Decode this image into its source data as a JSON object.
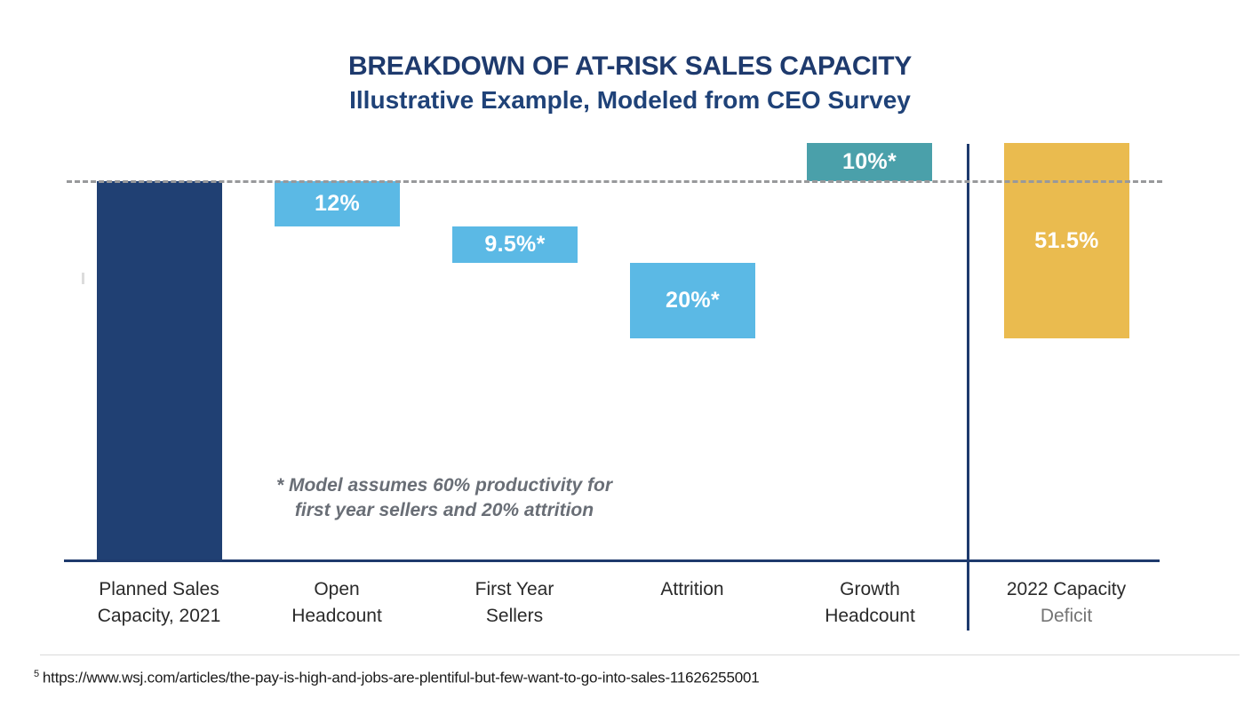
{
  "header": {
    "title": "BREAKDOWN OF AT-RISK SALES CAPACITY",
    "subtitle": "Illustrative Example, Modeled from CEO Survey"
  },
  "colors": {
    "navy": "#204073",
    "lightBlue": "#5bb9e5",
    "teal": "#4aa0aa",
    "gold": "#eabb4f",
    "axisLine": "#1e3a6d",
    "dashLine": "#98999b",
    "mutedText": "#757575"
  },
  "chart_data": {
    "type": "bar",
    "subtype": "waterfall",
    "title": "BREAKDOWN OF AT-RISK SALES CAPACITY",
    "subtitle": "Illustrative Example, Modeled from CEO Survey",
    "unit": "percent of planned 2021 sales capacity",
    "ylim": [
      0,
      110
    ],
    "reference_line": {
      "level": 100,
      "style": "dashed",
      "meaning": "Planned Sales Capacity, 2021 = 100%"
    },
    "categories": [
      "Planned Sales Capacity, 2021",
      "Open Headcount",
      "First Year Sellers",
      "Attrition",
      "Growth Headcount",
      "2022 Capacity Deficit"
    ],
    "bars": [
      {
        "category": "Planned Sales Capacity, 2021",
        "label": "",
        "value": 100,
        "span_top": 100,
        "span_bottom": 0,
        "color": "navy"
      },
      {
        "category": "Open Headcount",
        "label": "12%",
        "value": -12,
        "span_top": 100,
        "span_bottom": 88,
        "color": "lightBlue"
      },
      {
        "category": "First Year Sellers",
        "label": "9.5%*",
        "value": -9.5,
        "span_top": 88,
        "span_bottom": 78.5,
        "color": "lightBlue"
      },
      {
        "category": "Attrition",
        "label": "20%*",
        "value": -20,
        "span_top": 78.5,
        "span_bottom": 58.5,
        "color": "lightBlue"
      },
      {
        "category": "Growth Headcount",
        "label": "10%*",
        "value": 10,
        "span_top": 110,
        "span_bottom": 100,
        "color": "teal"
      },
      {
        "category": "2022 Capacity Deficit",
        "label": "51.5%",
        "value": 51.5,
        "span_top": 110,
        "span_bottom": 58.5,
        "color": "gold"
      }
    ]
  },
  "xaxis": {
    "labels": [
      {
        "line1": "Planned Sales",
        "line2": "Capacity, 2021"
      },
      {
        "line1": "Open",
        "line2": "Headcount"
      },
      {
        "line1": "First Year",
        "line2": "Sellers"
      },
      {
        "line1": "Attrition",
        "line2": ""
      },
      {
        "line1": "Growth",
        "line2": "Headcount"
      },
      {
        "line1": "2022 Capacity",
        "line2": "Deficit"
      }
    ]
  },
  "annotation": {
    "line1": "* Model assumes 60% productivity for",
    "line2": "first year sellers and 20% attrition"
  },
  "source": {
    "ref": "5",
    "url": "https://www.wsj.com/articles/the-pay-is-high-and-jobs-are-plentiful-but-few-want-to-go-into-sales-11626255001"
  }
}
